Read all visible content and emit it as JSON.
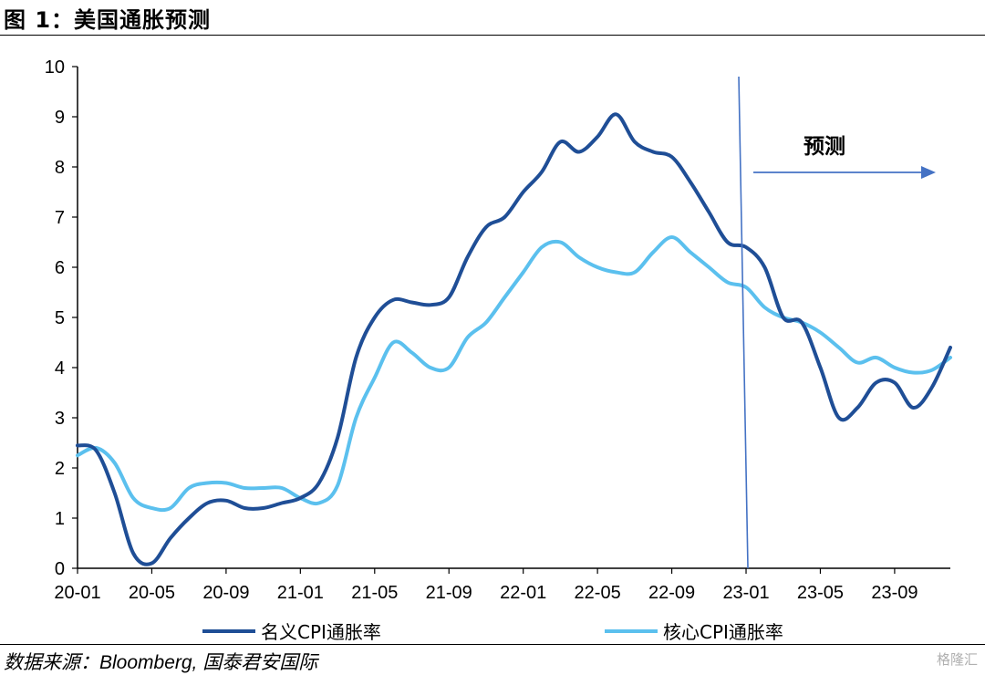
{
  "header": {
    "title": "图 1：美国通胀预测"
  },
  "footer": {
    "source": "数据来源：Bloomberg, 国泰君安国际",
    "watermark": "格隆汇"
  },
  "chart_data": {
    "type": "line",
    "title": "",
    "xlabel": "",
    "ylabel": "",
    "ylim": [
      0,
      10
    ],
    "yticks": [
      0,
      1,
      2,
      3,
      4,
      5,
      6,
      7,
      8,
      9,
      10
    ],
    "xticks": [
      "20-01",
      "20-05",
      "20-09",
      "21-01",
      "21-05",
      "21-09",
      "22-01",
      "22-05",
      "22-09",
      "23-01",
      "23-05",
      "23-09"
    ],
    "grid": false,
    "legend_position": "bottom",
    "forecast_start": "23-01",
    "annotation": "预测",
    "series": [
      {
        "name": "名义CPI通胀率",
        "color": "#1f4e96",
        "points": [
          [
            "20-01",
            2.45
          ],
          [
            "20-02",
            2.35
          ],
          [
            "20-03",
            1.5
          ],
          [
            "20-04",
            0.3
          ],
          [
            "20-05",
            0.1
          ],
          [
            "20-06",
            0.6
          ],
          [
            "20-07",
            1.0
          ],
          [
            "20-08",
            1.3
          ],
          [
            "20-09",
            1.35
          ],
          [
            "20-10",
            1.2
          ],
          [
            "20-11",
            1.2
          ],
          [
            "20-12",
            1.3
          ],
          [
            "21-01",
            1.4
          ],
          [
            "21-02",
            1.7
          ],
          [
            "21-03",
            2.6
          ],
          [
            "21-04",
            4.2
          ],
          [
            "21-05",
            5.0
          ],
          [
            "21-06",
            5.35
          ],
          [
            "21-07",
            5.3
          ],
          [
            "21-08",
            5.25
          ],
          [
            "21-09",
            5.4
          ],
          [
            "21-10",
            6.2
          ],
          [
            "21-11",
            6.8
          ],
          [
            "21-12",
            7.0
          ],
          [
            "22-01",
            7.5
          ],
          [
            "22-02",
            7.9
          ],
          [
            "22-03",
            8.5
          ],
          [
            "22-04",
            8.3
          ],
          [
            "22-05",
            8.6
          ],
          [
            "22-06",
            9.05
          ],
          [
            "22-07",
            8.5
          ],
          [
            "22-08",
            8.3
          ],
          [
            "22-09",
            8.2
          ],
          [
            "22-10",
            7.7
          ],
          [
            "22-11",
            7.1
          ],
          [
            "22-12",
            6.5
          ],
          [
            "23-01",
            6.4
          ],
          [
            "23-02",
            6.0
          ],
          [
            "23-03",
            5.0
          ],
          [
            "23-04",
            4.9
          ],
          [
            "23-05",
            4.0
          ],
          [
            "23-06",
            3.0
          ],
          [
            "23-07",
            3.2
          ],
          [
            "23-08",
            3.7
          ],
          [
            "23-09",
            3.7
          ],
          [
            "23-10",
            3.2
          ],
          [
            "23-11",
            3.6
          ],
          [
            "23-12",
            4.4
          ]
        ]
      },
      {
        "name": "核心CPI通胀率",
        "color": "#5bc0ee",
        "points": [
          [
            "20-01",
            2.25
          ],
          [
            "20-02",
            2.4
          ],
          [
            "20-03",
            2.1
          ],
          [
            "20-04",
            1.4
          ],
          [
            "20-05",
            1.2
          ],
          [
            "20-06",
            1.2
          ],
          [
            "20-07",
            1.6
          ],
          [
            "20-08",
            1.7
          ],
          [
            "20-09",
            1.7
          ],
          [
            "20-10",
            1.6
          ],
          [
            "20-11",
            1.6
          ],
          [
            "20-12",
            1.6
          ],
          [
            "21-01",
            1.4
          ],
          [
            "21-02",
            1.3
          ],
          [
            "21-03",
            1.65
          ],
          [
            "21-04",
            3.0
          ],
          [
            "21-05",
            3.8
          ],
          [
            "21-06",
            4.5
          ],
          [
            "21-07",
            4.3
          ],
          [
            "21-08",
            4.0
          ],
          [
            "21-09",
            4.0
          ],
          [
            "21-10",
            4.6
          ],
          [
            "21-11",
            4.9
          ],
          [
            "21-12",
            5.4
          ],
          [
            "22-01",
            5.9
          ],
          [
            "22-02",
            6.4
          ],
          [
            "22-03",
            6.5
          ],
          [
            "22-04",
            6.2
          ],
          [
            "22-05",
            6.0
          ],
          [
            "22-06",
            5.9
          ],
          [
            "22-07",
            5.9
          ],
          [
            "22-08",
            6.3
          ],
          [
            "22-09",
            6.6
          ],
          [
            "22-10",
            6.3
          ],
          [
            "22-11",
            6.0
          ],
          [
            "22-12",
            5.7
          ],
          [
            "23-01",
            5.6
          ],
          [
            "23-02",
            5.2
          ],
          [
            "23-03",
            5.0
          ],
          [
            "23-04",
            4.9
          ],
          [
            "23-05",
            4.7
          ],
          [
            "23-06",
            4.4
          ],
          [
            "23-07",
            4.1
          ],
          [
            "23-08",
            4.2
          ],
          [
            "23-09",
            4.0
          ],
          [
            "23-10",
            3.9
          ],
          [
            "23-11",
            3.95
          ],
          [
            "23-12",
            4.2
          ]
        ]
      }
    ]
  }
}
